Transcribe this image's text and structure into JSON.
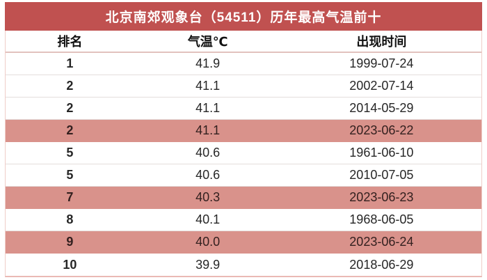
{
  "title": "北京南郊观象台（54511）历年最高气温前十",
  "columns": [
    "排名",
    "气温℃",
    "出现时间"
  ],
  "rows": [
    {
      "rank": "1",
      "temp": "41.9",
      "date": "1999-07-24",
      "highlight": false
    },
    {
      "rank": "2",
      "temp": "41.1",
      "date": "2002-07-14",
      "highlight": false
    },
    {
      "rank": "2",
      "temp": "41.1",
      "date": "2014-05-29",
      "highlight": false
    },
    {
      "rank": "2",
      "temp": "41.1",
      "date": "2023-06-22",
      "highlight": true
    },
    {
      "rank": "5",
      "temp": "40.6",
      "date": "1961-06-10",
      "highlight": false
    },
    {
      "rank": "5",
      "temp": "40.6",
      "date": "2010-07-05",
      "highlight": false
    },
    {
      "rank": "7",
      "temp": "40.3",
      "date": "2023-06-23",
      "highlight": true
    },
    {
      "rank": "8",
      "temp": "40.1",
      "date": "1968-06-05",
      "highlight": false
    },
    {
      "rank": "9",
      "temp": "40.0",
      "date": "2023-06-24",
      "highlight": true
    },
    {
      "rank": "10",
      "temp": "39.9",
      "date": "2018-06-29",
      "highlight": false
    }
  ],
  "colors": {
    "title_bg": "#c05150",
    "title_text": "#ffffff",
    "highlight_row_bg": "#d9928b",
    "border_pink": "#eab9b5"
  },
  "chart_data": {
    "type": "table",
    "title": "北京南郊观象台（54511）历年最高气温前十",
    "columns": [
      "排名",
      "气温℃",
      "出现时间"
    ],
    "rows": [
      [
        "1",
        41.9,
        "1999-07-24"
      ],
      [
        "2",
        41.1,
        "2002-07-14"
      ],
      [
        "2",
        41.1,
        "2014-05-29"
      ],
      [
        "2",
        41.1,
        "2023-06-22"
      ],
      [
        "5",
        40.6,
        "1961-06-10"
      ],
      [
        "5",
        40.6,
        "2010-07-05"
      ],
      [
        "7",
        40.3,
        "2023-06-23"
      ],
      [
        "8",
        40.1,
        "1968-06-05"
      ],
      [
        "9",
        40.0,
        "2023-06-24"
      ],
      [
        "10",
        39.9,
        "2018-06-29"
      ]
    ],
    "highlighted_row_indices": [
      3,
      6,
      8
    ],
    "highlight_meaning_color": "#d9928b"
  }
}
